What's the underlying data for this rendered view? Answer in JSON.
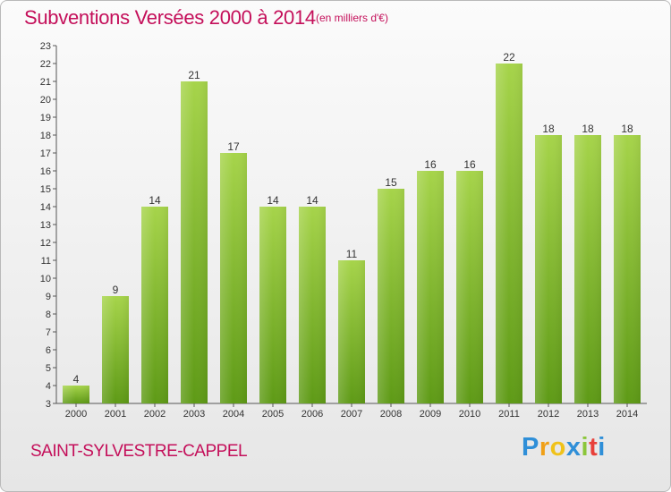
{
  "header": {
    "title": "Subventions Versées 2000 à 2014",
    "unit_note": "(en milliers d'€)"
  },
  "footer": {
    "commune": "SAINT-SYLVESTRE-CAPPEL",
    "logo_letters": [
      "P",
      "r",
      "o",
      "x",
      "i",
      "t",
      "i"
    ],
    "logo_colors": [
      "#2f8fd8",
      "#f0a018",
      "#f0c21a",
      "#2f8fd8",
      "#8bc63a",
      "#e8403a",
      "#2f8fd8"
    ]
  },
  "chart_data": {
    "type": "bar",
    "title": "Subventions Versées 2000 à 2014",
    "subtitle": "(en milliers d'€)",
    "xlabel": "",
    "ylabel": "",
    "categories": [
      "2000",
      "2001",
      "2002",
      "2003",
      "2004",
      "2005",
      "2006",
      "2007",
      "2008",
      "2009",
      "2010",
      "2011",
      "2012",
      "2013",
      "2014"
    ],
    "values": [
      4,
      9,
      14,
      21,
      17,
      14,
      14,
      11,
      15,
      16,
      16,
      22,
      18,
      18,
      18
    ],
    "ylim": [
      3,
      23
    ],
    "yticks": [
      3,
      4,
      5,
      6,
      7,
      8,
      9,
      10,
      11,
      12,
      13,
      14,
      15,
      16,
      17,
      18,
      19,
      20,
      21,
      22,
      23
    ],
    "grid": false,
    "bar_color_top": "#a6d44a",
    "bar_color_bottom": "#5e9a16",
    "text_color": "#333333"
  }
}
